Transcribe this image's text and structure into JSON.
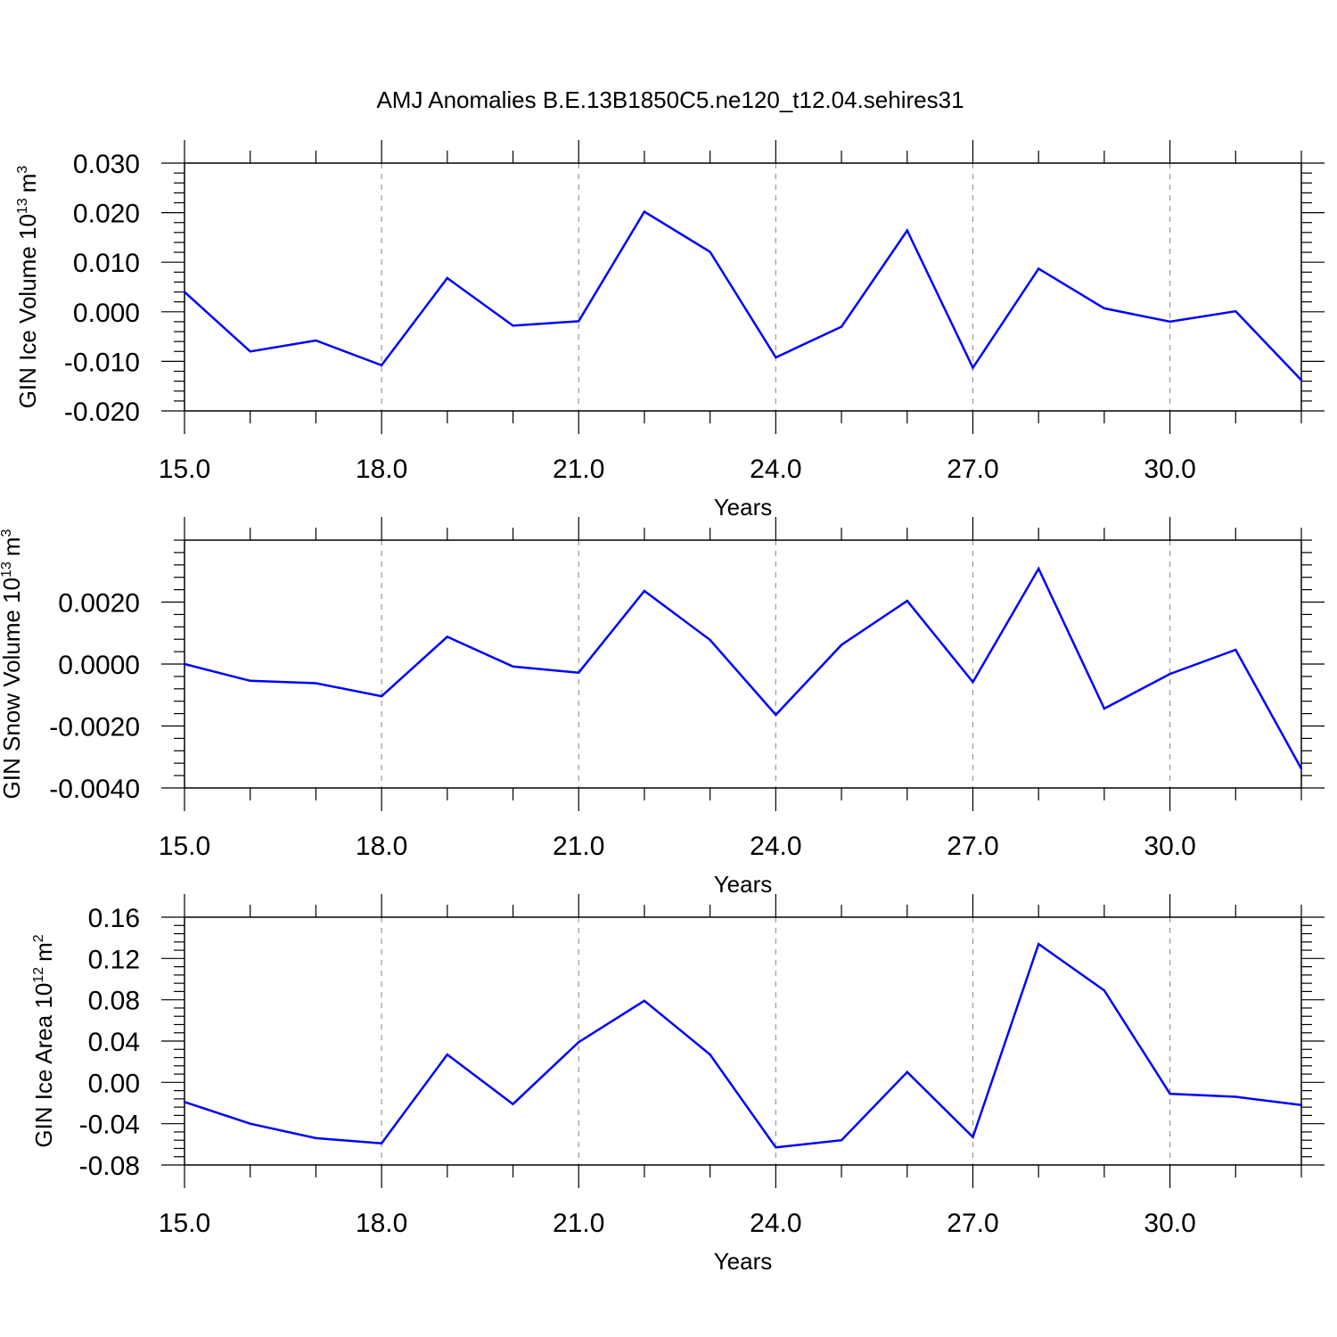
{
  "figure_title": "AMJ Anomalies B.E.13B1850C5.ne120_t12.04.sehires31",
  "chart_data": [
    {
      "type": "line",
      "title": "",
      "xlabel": "Years",
      "ylabel": "GIN Ice Volume 10",
      "ylabel_sup": "13",
      "ylabel_unit": "m",
      "ylabel_unit_sup": "3",
      "xlim": [
        15,
        32
      ],
      "ylim": [
        -0.02,
        0.03
      ],
      "grid": "vertical dashed at major x ticks",
      "x_ticks": [
        15,
        18,
        21,
        24,
        27,
        30
      ],
      "x_tick_labels": [
        "15.0",
        "18.0",
        "21.0",
        "24.0",
        "27.0",
        "30.0"
      ],
      "y_ticks": [
        -0.02,
        -0.01,
        0.0,
        0.01,
        0.02,
        0.03
      ],
      "y_tick_labels": [
        "-0.020",
        "-0.010",
        "0.000",
        "0.010",
        "0.020",
        "0.030"
      ],
      "color": "#0000ff",
      "x": [
        15,
        16,
        17,
        18,
        19,
        20,
        21,
        22,
        23,
        24,
        25,
        26,
        27,
        28,
        29,
        30,
        31,
        32
      ],
      "values": [
        0.004,
        -0.008,
        -0.0058,
        -0.0108,
        0.0068,
        -0.0028,
        -0.0019,
        0.0202,
        0.0121,
        -0.0092,
        -0.003,
        0.0164,
        -0.0113,
        0.0087,
        0.0007,
        -0.002,
        0.0001,
        -0.0138
      ]
    },
    {
      "type": "line",
      "title": "",
      "xlabel": "Years",
      "ylabel": "GIN Snow Volume 10",
      "ylabel_sup": "13",
      "ylabel_unit": "m",
      "ylabel_unit_sup": "3",
      "xlim": [
        15,
        32
      ],
      "ylim": [
        -0.004,
        0.004
      ],
      "grid": "vertical dashed at major x ticks",
      "x_ticks": [
        15,
        18,
        21,
        24,
        27,
        30
      ],
      "x_tick_labels": [
        "15.0",
        "18.0",
        "21.0",
        "24.0",
        "27.0",
        "30.0"
      ],
      "y_ticks": [
        -0.004,
        -0.002,
        0.0,
        0.002
      ],
      "y_tick_labels": [
        "-0.0040",
        "-0.0020",
        "0.0000",
        "0.0020"
      ],
      "color": "#0000ff",
      "x": [
        15,
        16,
        17,
        18,
        19,
        20,
        21,
        22,
        23,
        24,
        25,
        26,
        27,
        28,
        29,
        30,
        31,
        32
      ],
      "values": [
        0.0,
        -0.00054,
        -0.00062,
        -0.00104,
        0.00088,
        -8e-05,
        -0.00028,
        0.00236,
        0.00078,
        -0.00164,
        0.00062,
        0.00204,
        -0.00058,
        0.00308,
        -0.00144,
        -0.00032,
        0.00046,
        -0.00338
      ]
    },
    {
      "type": "line",
      "title": "",
      "xlabel": "Years",
      "ylabel": "GIN Ice Area 10",
      "ylabel_sup": "12",
      "ylabel_unit": "m",
      "ylabel_unit_sup": "2",
      "xlim": [
        15,
        32
      ],
      "ylim": [
        -0.08,
        0.16
      ],
      "grid": "vertical dashed at major x ticks",
      "x_ticks": [
        15,
        18,
        21,
        24,
        27,
        30
      ],
      "x_tick_labels": [
        "15.0",
        "18.0",
        "21.0",
        "24.0",
        "27.0",
        "30.0"
      ],
      "y_ticks": [
        -0.08,
        -0.04,
        0.0,
        0.04,
        0.08,
        0.12,
        0.16
      ],
      "y_tick_labels": [
        "-0.08",
        "-0.04",
        "0.00",
        "0.04",
        "0.08",
        "0.12",
        "0.16"
      ],
      "color": "#0000ff",
      "x": [
        15,
        16,
        17,
        18,
        19,
        20,
        21,
        22,
        23,
        24,
        25,
        26,
        27,
        28,
        29,
        30,
        31,
        32
      ],
      "values": [
        -0.019,
        -0.04,
        -0.054,
        -0.059,
        0.027,
        -0.021,
        0.039,
        0.079,
        0.027,
        -0.063,
        -0.056,
        0.01,
        -0.053,
        0.134,
        0.089,
        -0.011,
        -0.014,
        -0.022
      ]
    }
  ]
}
